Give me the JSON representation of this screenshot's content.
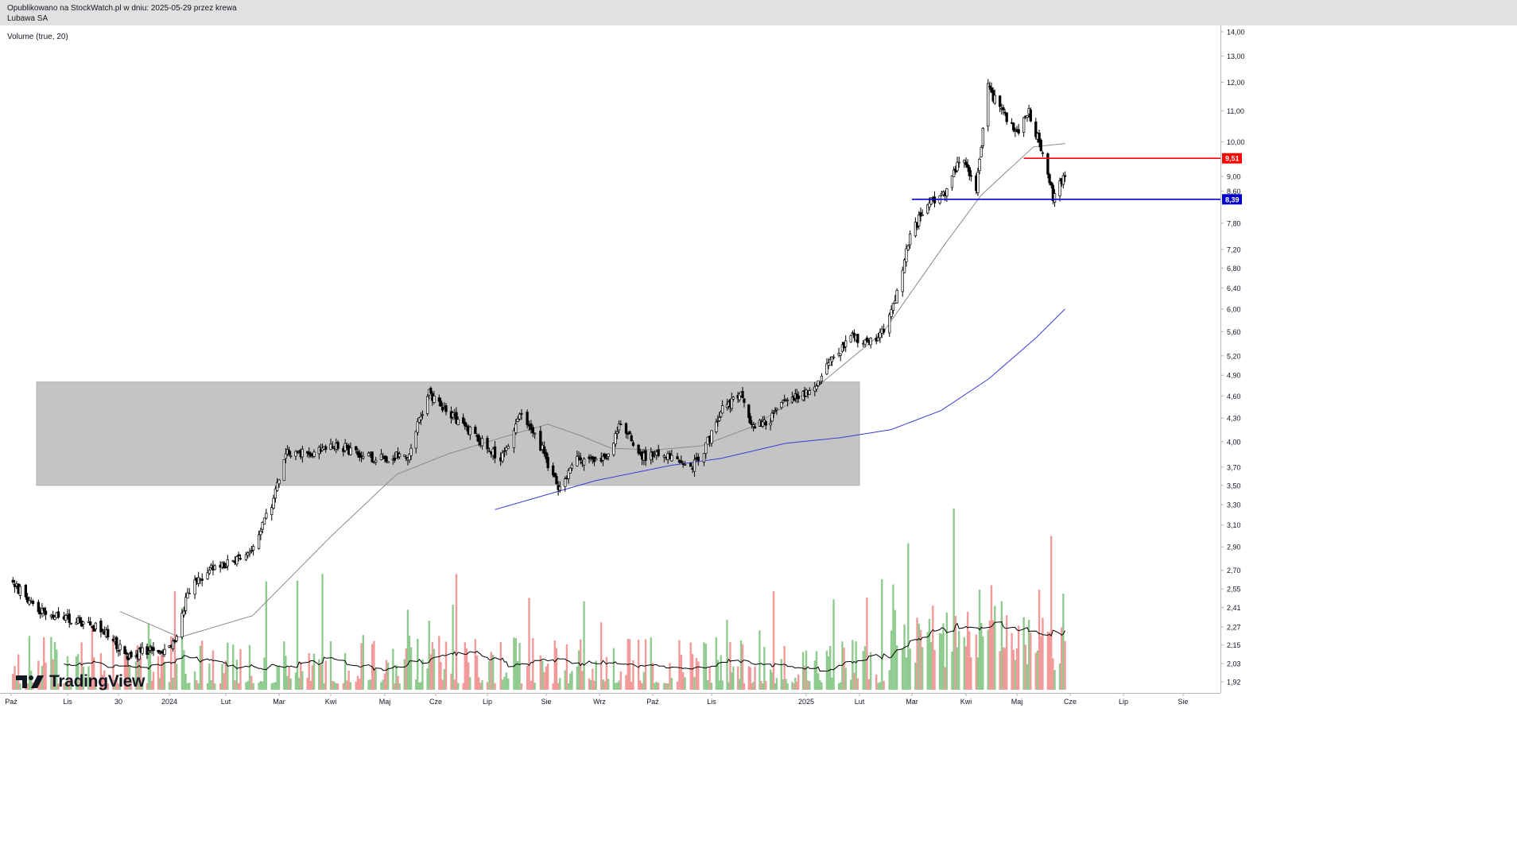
{
  "header": {
    "published": "Opublikowano na StockWatch.pl w dniu: 2025-05-29 przez krewa",
    "symbol": "Lubawa SA"
  },
  "indicator_label": "Volume (true, 20)",
  "branding": {
    "logo_text": "TradingView"
  },
  "colors": {
    "up_volume": "#8fcb8f",
    "down_volume": "#f29a9a",
    "resistance": "#ff0000",
    "support": "#0000cc",
    "ma_short": "#8a8a8a",
    "ma_long": "#3b3bd6",
    "range_box": "#c4c4c4"
  },
  "chart_data": {
    "type": "candlestick",
    "instrument": "Lubawa SA",
    "scale": "log",
    "y_ticks": [
      "14,00",
      "13,00",
      "12,00",
      "11,00",
      "10,00",
      "9,00",
      "8,60",
      "7,80",
      "7,20",
      "6,80",
      "6,40",
      "6,00",
      "5,60",
      "5,20",
      "4,90",
      "4,60",
      "4,30",
      "4,00",
      "3,70",
      "3,50",
      "3,30",
      "3,10",
      "2,90",
      "2,70",
      "2,55",
      "2,41",
      "2,27",
      "2,15",
      "2,03",
      "1,92"
    ],
    "x_ticks": [
      "Paź",
      "Lis",
      "30",
      "2024",
      "Lut",
      "Mar",
      "Kwi",
      "Maj",
      "Cze",
      "Lip",
      "Sie",
      "Wrz",
      "Paź",
      "Lis",
      "2025",
      "Lut",
      "Mar",
      "Kwi",
      "Maj",
      "Cze",
      "Lip",
      "Sie"
    ],
    "price_anchors": [
      {
        "date": "2023-10-01",
        "close": 2.62
      },
      {
        "date": "2023-10-15",
        "close": 2.38
      },
      {
        "date": "2023-11-01",
        "close": 2.33
      },
      {
        "date": "2023-11-20",
        "close": 2.26
      },
      {
        "date": "2023-12-05",
        "close": 2.08
      },
      {
        "date": "2023-12-20",
        "close": 2.12
      },
      {
        "date": "2023-12-28",
        "close": 2.08
      },
      {
        "date": "2024-01-03",
        "close": 2.15
      },
      {
        "date": "2024-01-12",
        "close": 2.55
      },
      {
        "date": "2024-01-25",
        "close": 2.72
      },
      {
        "date": "2024-02-08",
        "close": 2.78
      },
      {
        "date": "2024-02-14",
        "close": 2.82
      },
      {
        "date": "2024-02-20",
        "close": 3.05
      },
      {
        "date": "2024-02-27",
        "close": 3.35
      },
      {
        "date": "2024-03-05",
        "close": 3.9
      },
      {
        "date": "2024-03-20",
        "close": 3.85
      },
      {
        "date": "2024-04-05",
        "close": 3.95
      },
      {
        "date": "2024-04-25",
        "close": 3.8
      },
      {
        "date": "2024-05-15",
        "close": 3.85
      },
      {
        "date": "2024-05-28",
        "close": 4.65
      },
      {
        "date": "2024-06-10",
        "close": 4.35
      },
      {
        "date": "2024-06-25",
        "close": 4.05
      },
      {
        "date": "2024-07-08",
        "close": 3.78
      },
      {
        "date": "2024-07-18",
        "close": 4.35
      },
      {
        "date": "2024-07-30",
        "close": 3.9
      },
      {
        "date": "2024-08-08",
        "close": 3.45
      },
      {
        "date": "2024-08-20",
        "close": 3.8
      },
      {
        "date": "2024-09-05",
        "close": 3.78
      },
      {
        "date": "2024-09-12",
        "close": 4.25
      },
      {
        "date": "2024-09-25",
        "close": 3.82
      },
      {
        "date": "2024-10-08",
        "close": 3.85
      },
      {
        "date": "2024-10-20",
        "close": 3.66
      },
      {
        "date": "2024-10-28",
        "close": 3.9
      },
      {
        "date": "2024-11-08",
        "close": 4.45
      },
      {
        "date": "2024-11-20",
        "close": 4.6
      },
      {
        "date": "2024-11-28",
        "close": 4.18
      },
      {
        "date": "2024-12-10",
        "close": 4.3
      },
      {
        "date": "2024-12-20",
        "close": 4.55
      },
      {
        "date": "2025-01-05",
        "close": 4.7
      },
      {
        "date": "2025-01-15",
        "close": 5.1
      },
      {
        "date": "2025-01-28",
        "close": 5.5
      },
      {
        "date": "2025-02-10",
        "close": 5.4
      },
      {
        "date": "2025-02-20",
        "close": 6.1
      },
      {
        "date": "2025-02-28",
        "close": 7.5
      },
      {
        "date": "2025-03-10",
        "close": 8.3
      },
      {
        "date": "2025-03-20",
        "close": 8.6
      },
      {
        "date": "2025-03-30",
        "close": 9.7
      },
      {
        "date": "2025-04-07",
        "close": 8.6
      },
      {
        "date": "2025-04-14",
        "close": 11.8
      },
      {
        "date": "2025-04-22",
        "close": 11.0
      },
      {
        "date": "2025-05-01",
        "close": 10.3
      },
      {
        "date": "2025-05-08",
        "close": 11.0
      },
      {
        "date": "2025-05-15",
        "close": 9.8
      },
      {
        "date": "2025-05-22",
        "close": 8.45
      },
      {
        "date": "2025-05-29",
        "close": 9.05
      }
    ],
    "horizontal_levels": [
      {
        "label": "9,51",
        "value": 9.51,
        "color": "#ff0000",
        "from": "2025-05-05"
      },
      {
        "label": "8,39",
        "value": 8.39,
        "color": "#0000cc",
        "from": "2025-03-01"
      }
    ],
    "moving_averages": [
      {
        "color": "#8a8a8a",
        "from": "2023-12-01",
        "to": "2025-05-29",
        "values": [
          [
            0,
            2.38
          ],
          [
            0.12,
            2.2
          ],
          [
            0.25,
            2.35
          ],
          [
            0.4,
            3.0
          ],
          [
            0.52,
            3.62
          ],
          [
            0.62,
            3.85
          ],
          [
            0.72,
            4.05
          ],
          [
            0.8,
            4.22
          ],
          [
            0.86,
            4.08
          ],
          [
            0.92,
            3.92
          ],
          [
            1.0,
            3.9
          ],
          [
            1.08,
            3.95
          ],
          [
            1.18,
            4.18
          ],
          [
            1.32,
            4.75
          ],
          [
            1.44,
            5.6
          ],
          [
            1.55,
            7.3
          ],
          [
            1.62,
            8.5
          ],
          [
            1.72,
            9.85
          ],
          [
            1.78,
            9.95
          ]
        ]
      },
      {
        "color": "#3b3bd6",
        "from": "2024-07-05",
        "to": "2025-05-29",
        "values": [
          [
            0,
            3.25
          ],
          [
            0.2,
            3.55
          ],
          [
            0.35,
            3.72
          ],
          [
            0.45,
            3.8
          ],
          [
            0.6,
            3.98
          ],
          [
            0.72,
            4.05
          ],
          [
            0.82,
            4.15
          ],
          [
            0.92,
            4.4
          ],
          [
            1.02,
            4.85
          ],
          [
            1.12,
            5.5
          ],
          [
            1.18,
            6.0
          ]
        ]
      }
    ],
    "annotations": [
      {
        "type": "rectangle",
        "from": "2023-10-15",
        "to": "2025-02-01",
        "price_low": 3.5,
        "price_high": 4.8,
        "color": "#c4c4c4"
      }
    ],
    "volume": {
      "label": "Volume (true, 20)",
      "ma_length": 20
    }
  }
}
